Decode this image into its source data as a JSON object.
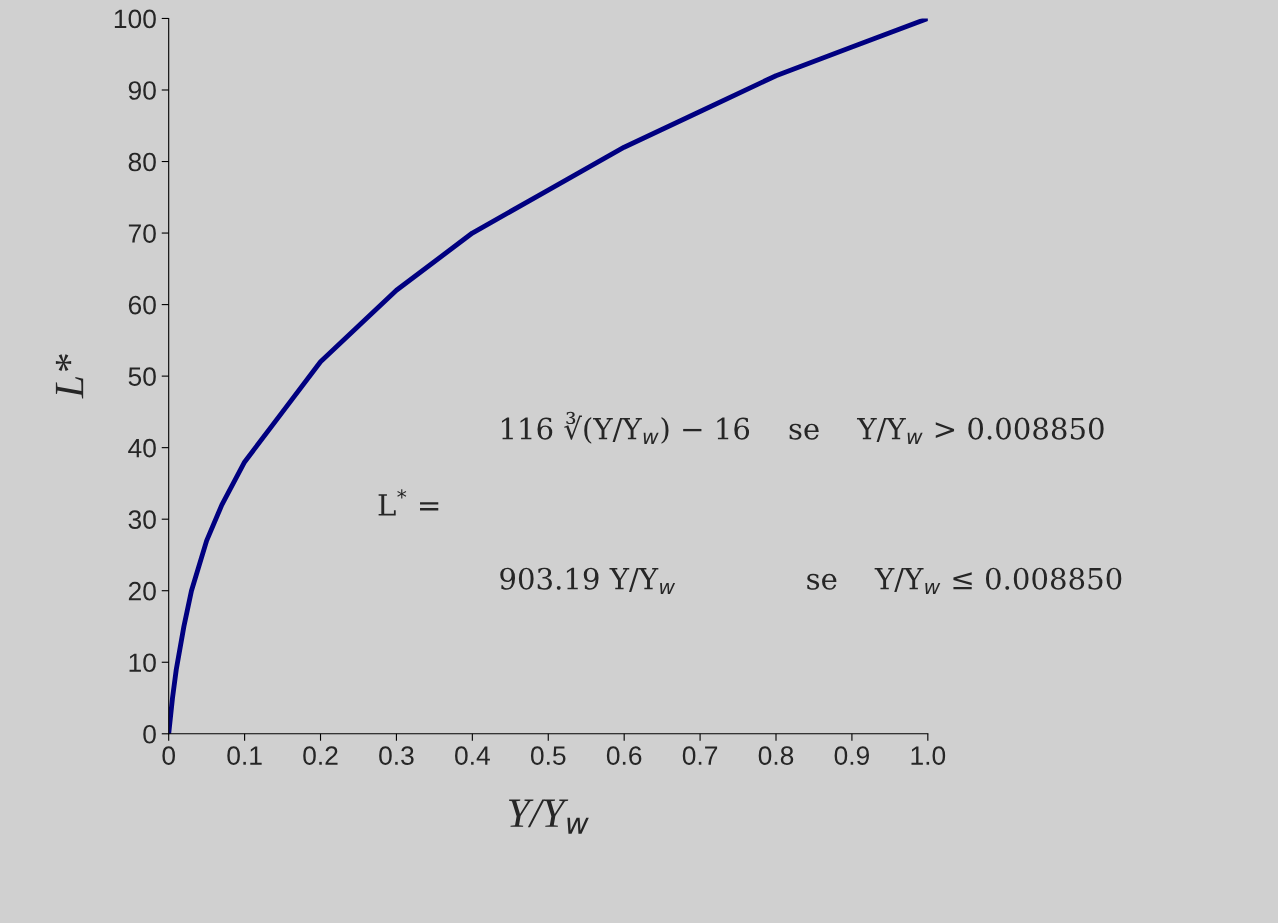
{
  "chart_data": {
    "type": "line",
    "xlabel": "Y/Y$_{w}$",
    "ylabel": "L*",
    "x": [
      0,
      0.005,
      0.01,
      0.02,
      0.03,
      0.05,
      0.07,
      0.1,
      0.15,
      0.2,
      0.25,
      0.3,
      0.4,
      0.5,
      0.6,
      0.7,
      0.8,
      0.9,
      1.0
    ],
    "series": [
      {
        "color": "#000080",
        "values": [
          0,
          5,
          9,
          15,
          20,
          27,
          32,
          38,
          45,
          52,
          57,
          62,
          70,
          76,
          82,
          87,
          92,
          96,
          100
        ]
      }
    ],
    "xlim": [
      0,
      1.0
    ],
    "ylim": [
      0,
      100
    ],
    "xticks": [
      0,
      0.1,
      0.2,
      0.3,
      0.4,
      0.5,
      0.6,
      0.7,
      0.8,
      0.9,
      {
        "value": 1.0,
        "label": "1.0"
      }
    ],
    "yticks": [
      0,
      10,
      20,
      30,
      40,
      50,
      60,
      70,
      80,
      90,
      100
    ],
    "grid": false,
    "legend": false,
    "marker": "none",
    "line_style": "solid",
    "annotations": [
      "L$^{*}$ =",
      "116 ∛(Y/Y$_{w}$) − 16    se    Y/Y$_{w}$ > 0.008850",
      "903.19 Y/Y$_{w}$              se    Y/Y$_{w}$ ≤ 0.008850"
    ]
  }
}
